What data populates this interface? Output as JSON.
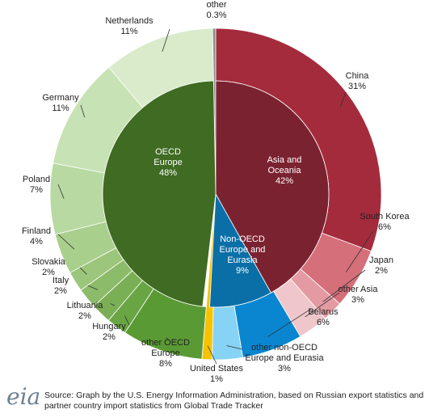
{
  "chart_data": {
    "type": "nested-pie",
    "groups": [
      {
        "name": "Asia and Oceania",
        "value": 42,
        "value_label": "42%",
        "color": "#7b2230",
        "children": [
          {
            "name": "China",
            "value": 31,
            "value_label": "31%",
            "color": "#a42b3b"
          },
          {
            "name": "South Korea",
            "value": 6,
            "value_label": "6%",
            "color": "#d56f7a"
          },
          {
            "name": "Japan",
            "value": 2,
            "value_label": "2%",
            "color": "#e39aa2"
          },
          {
            "name": "other Asia",
            "value": 3,
            "value_label": "3%",
            "color": "#efc6cb"
          }
        ]
      },
      {
        "name": "Non-OECD Europe and Eurasia",
        "value": 9,
        "value_label": "9%",
        "color": "#0a6fa6",
        "children": [
          {
            "name": "Belarus",
            "value": 6,
            "value_label": "6%",
            "color": "#0a86d0"
          },
          {
            "name": "other non-OECD Europe and Eurasia",
            "value": 3,
            "value_label": "3%",
            "color": "#86d3f5"
          }
        ]
      },
      {
        "name": "United States",
        "value": 1,
        "value_label": "1%",
        "color": "#f7c200"
      },
      {
        "name": "OECD Europe",
        "value": 48,
        "value_label": "48%",
        "color": "#3f6b22",
        "children": [
          {
            "name": "other OECD Europe",
            "value": 8,
            "value_label": "8%",
            "color": "#5a9a35"
          },
          {
            "name": "Hungary",
            "value": 2,
            "value_label": "2%",
            "color": "#6aa544"
          },
          {
            "name": "Lithuania",
            "value": 2,
            "value_label": "2%",
            "color": "#7aaf55"
          },
          {
            "name": "Italy",
            "value": 2,
            "value_label": "2%",
            "color": "#8cbb69"
          },
          {
            "name": "Slovakia",
            "value": 2,
            "value_label": "2%",
            "color": "#9cc67b"
          },
          {
            "name": "Finland",
            "value": 4,
            "value_label": "4%",
            "color": "#a9cf8d"
          },
          {
            "name": "Poland",
            "value": 7,
            "value_label": "7%",
            "color": "#b9d9a2"
          },
          {
            "name": "Germany",
            "value": 11,
            "value_label": "11%",
            "color": "#c7e2b4"
          },
          {
            "name": "Netherlands",
            "value": 11,
            "value_label": "11%",
            "color": "#d9ebcb"
          }
        ]
      },
      {
        "name": "other",
        "value": 0.3,
        "value_label": "0.3%",
        "color": "#8c8c8c"
      }
    ],
    "logo": "eia",
    "source": "Source: Graph by the U.S. Energy Information Administration, based on Russian export statistics and partner country import statistics from Global Trade Tracker"
  }
}
